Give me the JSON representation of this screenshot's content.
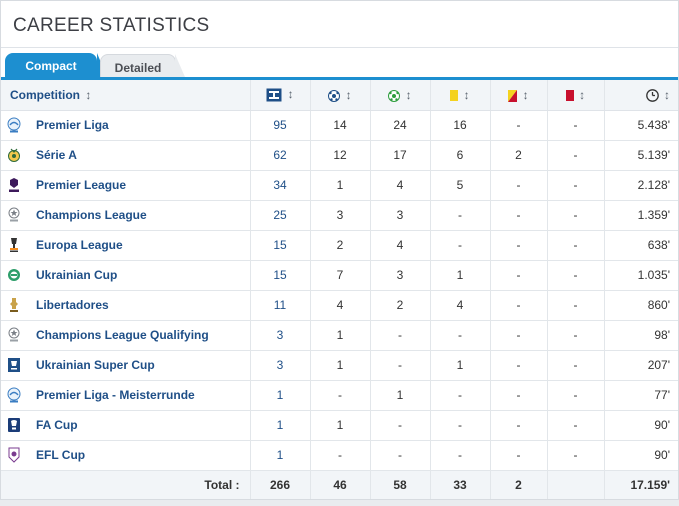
{
  "page": {
    "title": "CAREER STATISTICS"
  },
  "tabs": [
    {
      "label": "Compact",
      "active": true
    },
    {
      "label": "Detailed",
      "active": false
    }
  ],
  "table": {
    "headers": {
      "competition": "Competition",
      "sort_icon": "↕",
      "stat_icons": [
        "appearances-icon",
        "goals-icon",
        "assists-icon",
        "yellow-card-icon",
        "second-yellow-card-icon",
        "red-card-icon",
        "minutes-played-icon"
      ]
    },
    "rows": [
      {
        "icon": "premier-liga-logo",
        "competition": "Premier Liga",
        "apps": "95",
        "goals": "14",
        "assists": "24",
        "yellow": "16",
        "second_yellow": "-",
        "red": "-",
        "minutes": "5.438'"
      },
      {
        "icon": "serie-a-logo",
        "competition": "Série A",
        "apps": "62",
        "goals": "12",
        "assists": "17",
        "yellow": "6",
        "second_yellow": "2",
        "red": "-",
        "minutes": "5.139'"
      },
      {
        "icon": "premier-league-logo",
        "competition": "Premier League",
        "apps": "34",
        "goals": "1",
        "assists": "4",
        "yellow": "5",
        "second_yellow": "-",
        "red": "-",
        "minutes": "2.128'"
      },
      {
        "icon": "champions-league-logo",
        "competition": "Champions League",
        "apps": "25",
        "goals": "3",
        "assists": "3",
        "yellow": "-",
        "second_yellow": "-",
        "red": "-",
        "minutes": "1.359'"
      },
      {
        "icon": "europa-league-logo",
        "competition": "Europa League",
        "apps": "15",
        "goals": "2",
        "assists": "4",
        "yellow": "-",
        "second_yellow": "-",
        "red": "-",
        "minutes": "638'"
      },
      {
        "icon": "ukrainian-cup-logo",
        "competition": "Ukrainian Cup",
        "apps": "15",
        "goals": "7",
        "assists": "3",
        "yellow": "1",
        "second_yellow": "-",
        "red": "-",
        "minutes": "1.035'"
      },
      {
        "icon": "libertadores-logo",
        "competition": "Libertadores",
        "apps": "11",
        "goals": "4",
        "assists": "2",
        "yellow": "4",
        "second_yellow": "-",
        "red": "-",
        "minutes": "860'"
      },
      {
        "icon": "champions-league-logo",
        "competition": "Champions League Qualifying",
        "apps": "3",
        "goals": "1",
        "assists": "-",
        "yellow": "-",
        "second_yellow": "-",
        "red": "-",
        "minutes": "98'"
      },
      {
        "icon": "ukrainian-super-cup-logo",
        "competition": "Ukrainian Super Cup",
        "apps": "3",
        "goals": "1",
        "assists": "-",
        "yellow": "1",
        "second_yellow": "-",
        "red": "-",
        "minutes": "207'"
      },
      {
        "icon": "premier-liga-logo",
        "competition": "Premier Liga - Meisterrunde",
        "apps": "1",
        "goals": "-",
        "assists": "1",
        "yellow": "-",
        "second_yellow": "-",
        "red": "-",
        "minutes": "77'"
      },
      {
        "icon": "fa-cup-logo",
        "competition": "FA Cup",
        "apps": "1",
        "goals": "1",
        "assists": "-",
        "yellow": "-",
        "second_yellow": "-",
        "red": "-",
        "minutes": "90'"
      },
      {
        "icon": "efl-cup-logo",
        "competition": "EFL Cup",
        "apps": "1",
        "goals": "-",
        "assists": "-",
        "yellow": "-",
        "second_yellow": "-",
        "red": "-",
        "minutes": "90'"
      }
    ],
    "totals": {
      "label": "Total :",
      "apps": "266",
      "goals": "46",
      "assists": "58",
      "yellow": "33",
      "second_yellow": "2",
      "red": "",
      "minutes": "17.159'"
    }
  },
  "colors": {
    "accent": "#1d8fd0",
    "link": "#1f4f87",
    "yellow_card": "#f4d21f",
    "red_card": "#c8102e"
  }
}
